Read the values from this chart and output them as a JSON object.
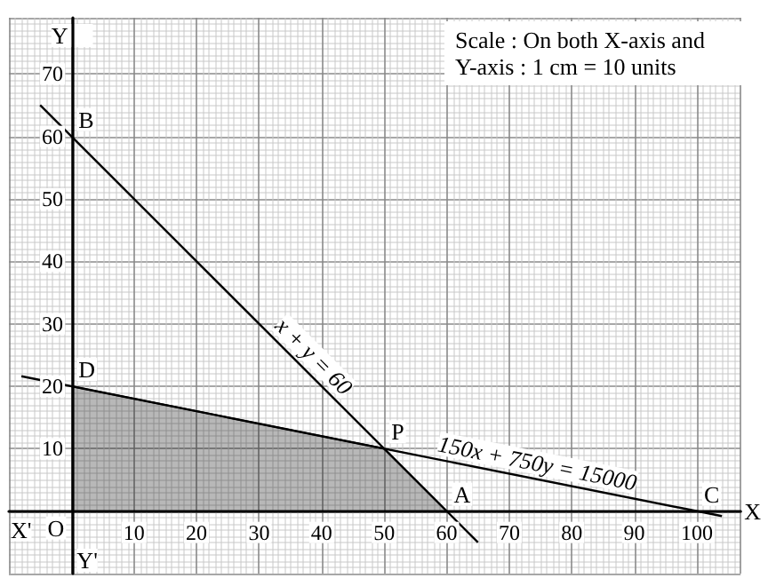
{
  "chart_data": {
    "type": "line",
    "xlabel": "X",
    "ylabel": "Y",
    "series": [
      {
        "type": "area",
        "color": "#000000",
        "x": [
          0,
          50,
          60
        ],
        "values": [
          20,
          10,
          0
        ]
      },
      {
        "color": "#000000",
        "x": [
          -5,
          65
        ],
        "values": [
          65,
          -5
        ]
      },
      {
        "color": "#000000",
        "x": [
          -8,
          104
        ],
        "values": [
          21.6,
          -0.8
        ]
      }
    ],
    "xlim": [
      -10,
      107
    ],
    "ylim": [
      -10,
      79
    ],
    "xticks": [
      10,
      20,
      30,
      40,
      50,
      60,
      70,
      80,
      90,
      100
    ],
    "yticks": [
      10,
      20,
      30,
      40,
      50,
      60,
      70
    ],
    "grid": true,
    "marker": "none",
    "line_style": "solid",
    "annotations": [
      "Scale : On both X-axis and Y-axis : 1 cm = 10 units",
      {
        "text": "B",
        "x": 0,
        "y": 60
      },
      {
        "text": "D",
        "x": 0,
        "y": 20
      },
      {
        "text": "P",
        "x": 50,
        "y": 10
      },
      {
        "text": "A",
        "x": 60,
        "y": 0
      },
      {
        "text": "C",
        "x": 100,
        "y": 0
      },
      {
        "text": "O",
        "x": 0,
        "y": 0
      },
      "X'",
      "Y'",
      {
        "text": "x + y = 60",
        "x": 37,
        "y": 23
      },
      {
        "text": "150x + 750y = 15000",
        "x": 74,
        "y": 5.2
      }
    ]
  }
}
